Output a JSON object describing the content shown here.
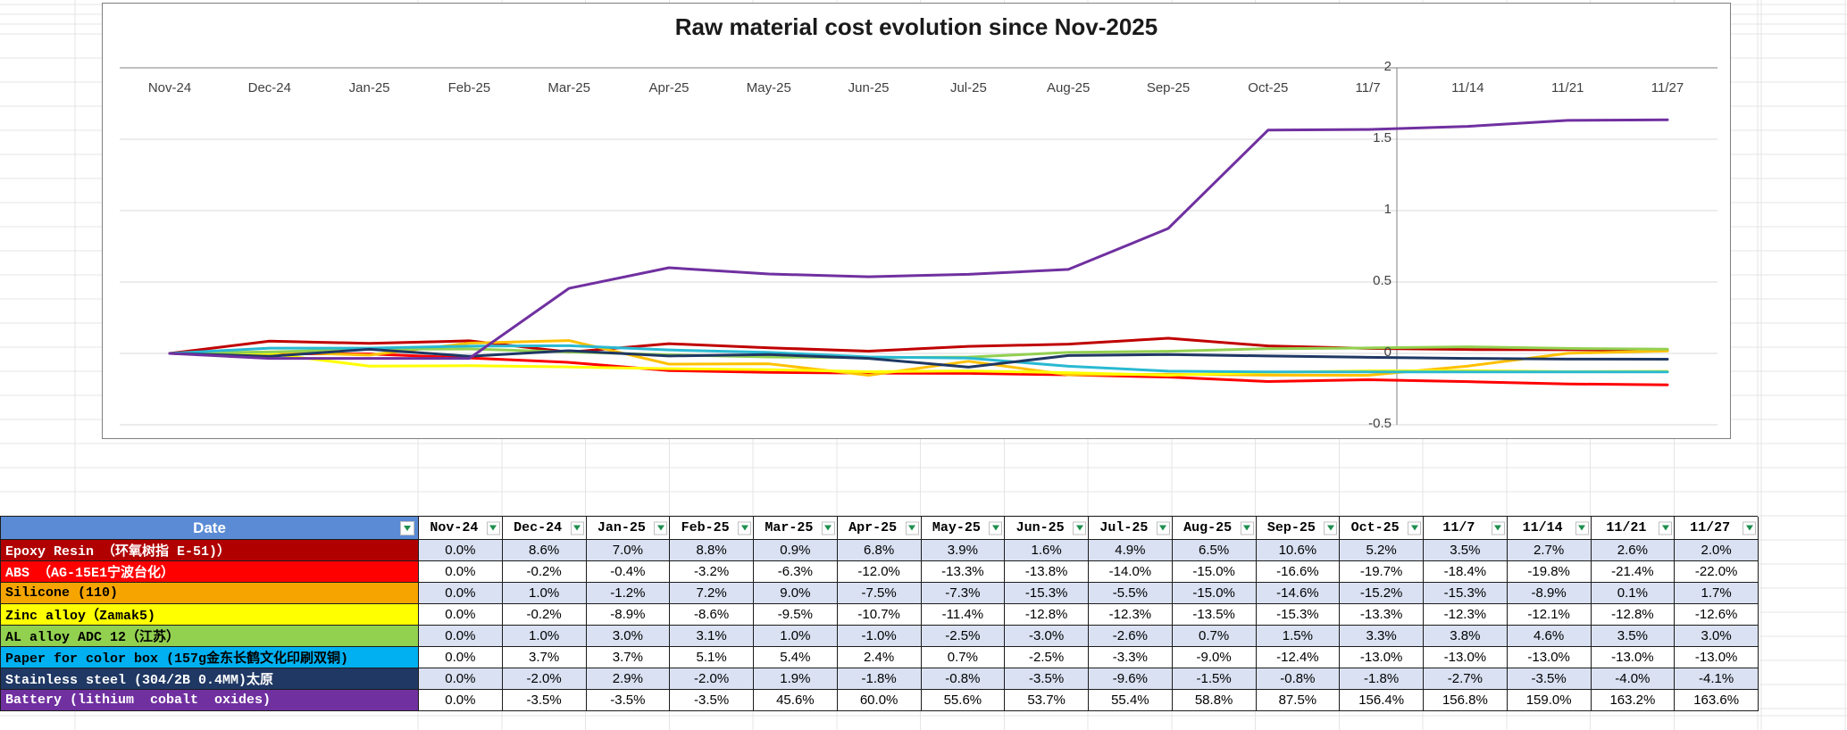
{
  "chart": {
    "border_color": "#7f7f7f",
    "axis_color": "#808080",
    "gridline_color": "#d9d9d9",
    "label_color": "#3f3f3f"
  },
  "chart_data": {
    "type": "line",
    "title": "Raw material cost evolution since Nov-2025",
    "categories": [
      "Nov-24",
      "Dec-24",
      "Jan-25",
      "Feb-25",
      "Mar-25",
      "Apr-25",
      "May-25",
      "Jun-25",
      "Jul-25",
      "Aug-25",
      "Sep-25",
      "Oct-25",
      "11/7",
      "11/14",
      "11/21",
      "11/27"
    ],
    "ylim": [
      -0.5,
      2
    ],
    "yticks": [
      2,
      1.5,
      1,
      0.5,
      0,
      -0.5
    ],
    "grid": "horizontal",
    "legend": "none",
    "values_unit": "percent (plotted as fraction, e.g. 163.6% -> 1.636)",
    "series": [
      {
        "name": "Epoxy Resin （环氧树指 E-51)）",
        "line_color": "#C00000",
        "fill": "#B00000",
        "text_color": "#FFFFFF",
        "values": [
          0.0,
          8.6,
          7.0,
          8.8,
          0.9,
          6.8,
          3.9,
          1.6,
          4.9,
          6.5,
          10.6,
          5.2,
          3.5,
          2.7,
          2.6,
          2.0
        ]
      },
      {
        "name": "ABS （AG-15E1宁波台化）",
        "line_color": "#FF0000",
        "fill": "#FF0000",
        "text_color": "#FFFFFF",
        "values": [
          0.0,
          -0.2,
          -0.4,
          -3.2,
          -6.3,
          -12.0,
          -13.3,
          -13.8,
          -14.0,
          -15.0,
          -16.6,
          -19.7,
          -18.4,
          -19.8,
          -21.4,
          -22.0
        ]
      },
      {
        "name": "Silicone (110)",
        "line_color": "#FFC000",
        "fill": "#F6A500",
        "text_color": "#000000",
        "values": [
          0.0,
          1.0,
          -1.2,
          7.2,
          9.0,
          -7.5,
          -7.3,
          -15.3,
          -5.5,
          -15.0,
          -14.6,
          -15.2,
          -15.3,
          -8.9,
          0.1,
          1.7
        ]
      },
      {
        "name": "Zinc alloy（Zamak5)",
        "line_color": "#FFFF00",
        "fill": "#FFFF00",
        "text_color": "#000000",
        "values": [
          0.0,
          -0.2,
          -8.9,
          -8.6,
          -9.5,
          -10.7,
          -11.4,
          -12.8,
          -12.3,
          -13.5,
          -15.3,
          -13.3,
          -12.3,
          -12.1,
          -12.8,
          -12.6
        ]
      },
      {
        "name": "AL alloy ADC 12（江苏）",
        "line_color": "#92D050",
        "fill": "#92D050",
        "text_color": "#000000",
        "values": [
          0.0,
          1.0,
          3.0,
          3.1,
          1.0,
          -1.0,
          -2.5,
          -3.0,
          -2.6,
          0.7,
          1.5,
          3.3,
          3.8,
          4.6,
          3.5,
          3.0
        ]
      },
      {
        "name": "Paper for color box (157g金东长鹤文化印刷双铜)",
        "line_color": "#29B9D2",
        "fill": "#00B0F0",
        "text_color": "#000000",
        "values": [
          0.0,
          3.7,
          3.7,
          5.1,
          5.4,
          2.4,
          0.7,
          -2.5,
          -3.3,
          -9.0,
          -12.4,
          -13.0,
          -13.0,
          -13.0,
          -13.0,
          -13.0
        ]
      },
      {
        "name": "Stainless steel (304/2B 0.4MM)太原",
        "line_color": "#1F3864",
        "fill": "#1F3864",
        "text_color": "#FFFFFF",
        "values": [
          0.0,
          -2.0,
          2.9,
          -2.0,
          1.9,
          -1.8,
          -0.8,
          -3.5,
          -9.6,
          -1.5,
          -0.8,
          -1.8,
          -2.7,
          -3.5,
          -4.0,
          -4.1
        ]
      },
      {
        "name": "Battery (lithium  cobalt  oxides)",
        "line_color": "#7030A0",
        "fill": "#7030A0",
        "text_color": "#FFFFFF",
        "values": [
          0.0,
          -3.5,
          -3.5,
          -3.5,
          45.6,
          60.0,
          55.6,
          53.7,
          55.4,
          58.8,
          87.5,
          156.4,
          156.8,
          159.0,
          163.2,
          163.6
        ]
      }
    ]
  },
  "table": {
    "header": {
      "label": "Date",
      "fill": "#5B8BD5",
      "text_color": "#FFFFFF"
    },
    "filter_icon": "filter-dropdown-arrow",
    "filter_icon_color": "#1E8F4E",
    "banded_fills": [
      "#D9E1F2",
      "#FFFFFF"
    ],
    "value_format": "one decimal + %"
  }
}
